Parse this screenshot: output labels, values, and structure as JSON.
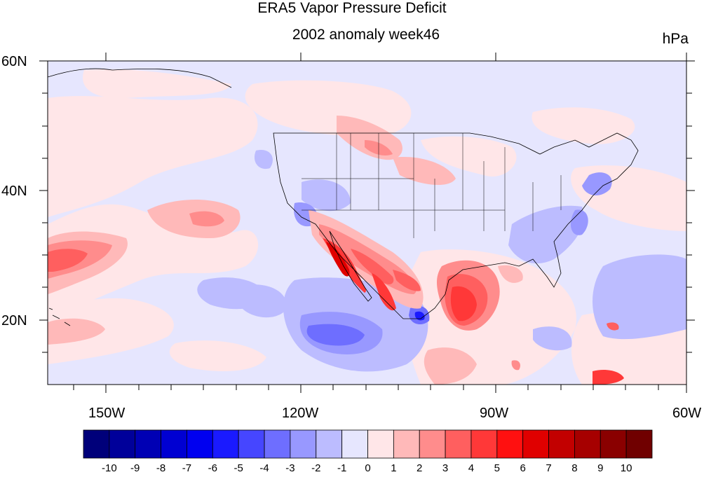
{
  "title": "ERA5 Vapor Pressure Deficit",
  "subtitle": "2002 anomaly week46",
  "units": "hPa",
  "chart_data": {
    "type": "heatmap",
    "title": "ERA5 Vapor Pressure Deficit",
    "subtitle": "2002 anomaly week46",
    "units": "hPa",
    "lon_range": [
      -159,
      -60
    ],
    "lat_range": [
      10,
      60
    ],
    "x_ticks": [
      "150W",
      "120W",
      "90W",
      "60W"
    ],
    "y_ticks": [
      "60N",
      "40N",
      "20N"
    ],
    "colorbar": {
      "levels": [
        "-10",
        "-9",
        "-8",
        "-7",
        "-6",
        "-5",
        "-4",
        "-3",
        "-2",
        "-1",
        "0",
        "1",
        "2",
        "3",
        "4",
        "5",
        "6",
        "7",
        "8",
        "9",
        "10"
      ],
      "colors": [
        "#00007a",
        "#00009a",
        "#0000b4",
        "#0000d2",
        "#0000f0",
        "#1a1aff",
        "#4646ff",
        "#6e6eff",
        "#9898ff",
        "#bcbcff",
        "#e6e6fe",
        "#ffe6e8",
        "#ffb9b9",
        "#ff8c8c",
        "#ff5f5f",
        "#ff3838",
        "#ff1010",
        "#e00000",
        "#c20000",
        "#a60000",
        "#8a0000",
        "#700000"
      ]
    }
  }
}
